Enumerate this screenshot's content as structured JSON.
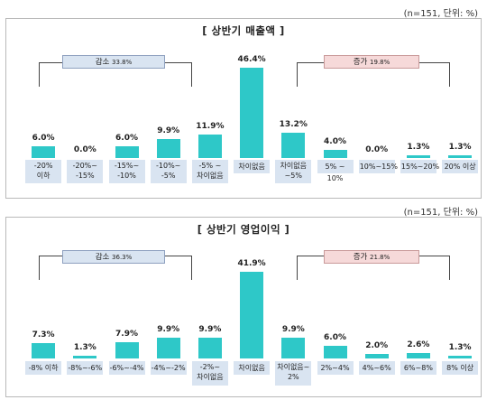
{
  "charts": [
    {
      "note": "(n=151,  단위: %)",
      "title": "[ 상반기 매출액 ]",
      "decrease_label": "감소",
      "decrease_total": "33.8%",
      "increase_label": "증가",
      "increase_total": "19.8%"
    },
    {
      "note": "(n=151,  단위: %)",
      "title": "[ 상반기 영업이익 ]",
      "decrease_label": "감소",
      "decrease_total": "36.3%",
      "increase_label": "증가",
      "increase_total": "21.8%"
    }
  ],
  "chart_data": [
    {
      "type": "bar",
      "title": "[ 상반기 매출액 ]",
      "categories": [
        "-20%\n이하",
        "-20%~\n-15%",
        "-15%~\n-10%",
        "-10%~\n-5%",
        "-5% ~\n차이없음",
        "차이없음",
        "차이없음\n~5%",
        "5% ~ 10%",
        "10%~15%",
        "15%~20%",
        "20% 이상"
      ],
      "values": [
        6.0,
        0.0,
        6.0,
        9.9,
        11.9,
        46.4,
        13.2,
        4.0,
        0.0,
        1.3,
        1.3
      ],
      "value_labels": [
        "6.0%",
        "0.0%",
        "6.0%",
        "9.9%",
        "11.9%",
        "46.4%",
        "13.2%",
        "4.0%",
        "0.0%",
        "1.3%",
        "1.3%"
      ],
      "ylim": [
        0,
        46.4
      ],
      "color": "#2ec8c8"
    },
    {
      "type": "bar",
      "title": "[ 상반기 영업이익 ]",
      "categories": [
        "-8% 이하",
        "-8%~-6%",
        "-6%~-4%",
        "-4%~-2%",
        "-2%~\n차이없음",
        "차이없음",
        "차이없음~\n2%",
        "2%~4%",
        "4%~6%",
        "6%~8%",
        "8% 이상"
      ],
      "values": [
        7.3,
        1.3,
        7.9,
        9.9,
        9.9,
        41.9,
        9.9,
        6.0,
        2.0,
        2.6,
        1.3
      ],
      "value_labels": [
        "7.3%",
        "1.3%",
        "7.9%",
        "9.9%",
        "9.9%",
        "41.9%",
        "9.9%",
        "6.0%",
        "2.0%",
        "2.6%",
        "1.3%"
      ],
      "ylim": [
        0,
        41.9
      ],
      "color": "#2ec8c8"
    }
  ]
}
